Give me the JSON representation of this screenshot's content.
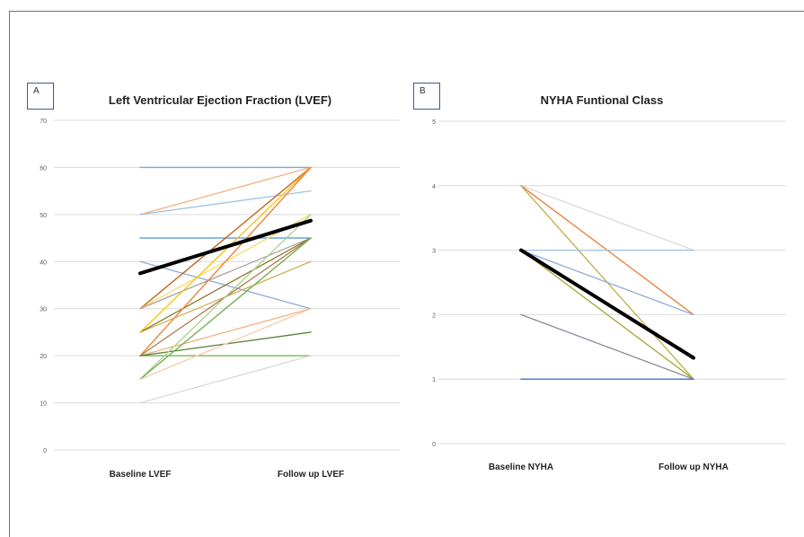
{
  "chart_data": [
    {
      "type": "line",
      "panel_label": "A",
      "title": "Left Ventricular Ejection Fraction (LVEF)",
      "categories": [
        "Baseline LVEF",
        "Follow up LVEF"
      ],
      "ylim": [
        0,
        70
      ],
      "yticks": [
        "0",
        "10",
        "20",
        "30",
        "40",
        "50",
        "60",
        "70"
      ],
      "grid": true,
      "series": [
        {
          "values": [
            60,
            60
          ],
          "color": "#7ea6e0"
        },
        {
          "values": [
            50,
            60
          ],
          "color": "#f4b183"
        },
        {
          "values": [
            50,
            55
          ],
          "color": "#9dc3e6"
        },
        {
          "values": [
            45,
            45
          ],
          "color": "#5b9bd5"
        },
        {
          "values": [
            40,
            30
          ],
          "color": "#8faadc"
        },
        {
          "values": [
            30,
            60
          ],
          "color": "#c55a11"
        },
        {
          "values": [
            30,
            50
          ],
          "color": "#ffd966"
        },
        {
          "values": [
            30,
            45
          ],
          "color": "#a5a5a5"
        },
        {
          "values": [
            25,
            40
          ],
          "color": "#c9b458"
        },
        {
          "values": [
            25,
            45
          ],
          "color": "#8a7a2a"
        },
        {
          "values": [
            25,
            60
          ],
          "color": "#ffc000"
        },
        {
          "values": [
            20,
            60
          ],
          "color": "#ed7d31"
        },
        {
          "values": [
            20,
            45
          ],
          "color": "#b07d56"
        },
        {
          "values": [
            20,
            30
          ],
          "color": "#f4b183"
        },
        {
          "values": [
            20,
            20
          ],
          "color": "#70ad47"
        },
        {
          "values": [
            20,
            25
          ],
          "color": "#548235"
        },
        {
          "values": [
            15,
            50
          ],
          "color": "#a9d18e"
        },
        {
          "values": [
            15,
            45
          ],
          "color": "#70ad47"
        },
        {
          "values": [
            15,
            30
          ],
          "color": "#f8cbad"
        },
        {
          "values": [
            10,
            20
          ],
          "color": "#d9d9d9"
        },
        {
          "values": [
            37.5,
            48.7
          ],
          "color": "#000000",
          "bold": true
        }
      ]
    },
    {
      "type": "line",
      "panel_label": "B",
      "title": "NYHA Funtional Class",
      "categories": [
        "Baseline NYHA",
        "Follow up NYHA"
      ],
      "ylim": [
        0,
        5
      ],
      "yticks": [
        "0",
        "1",
        "2",
        "3",
        "4",
        "5"
      ],
      "grid": true,
      "series": [
        {
          "values": [
            4,
            3
          ],
          "color": "#d9d9d9"
        },
        {
          "values": [
            4,
            2
          ],
          "color": "#ed7d31"
        },
        {
          "values": [
            4,
            1
          ],
          "color": "#bfb045"
        },
        {
          "values": [
            3,
            3
          ],
          "color": "#9dc3e6"
        },
        {
          "values": [
            3,
            2
          ],
          "color": "#8faadc"
        },
        {
          "values": [
            3,
            1
          ],
          "color": "#a5a532"
        },
        {
          "values": [
            2,
            1
          ],
          "color": "#8a8a9a"
        },
        {
          "values": [
            1,
            1
          ],
          "color": "#4472c4"
        },
        {
          "values": [
            3,
            1.33
          ],
          "color": "#000000",
          "bold": true
        }
      ]
    }
  ]
}
